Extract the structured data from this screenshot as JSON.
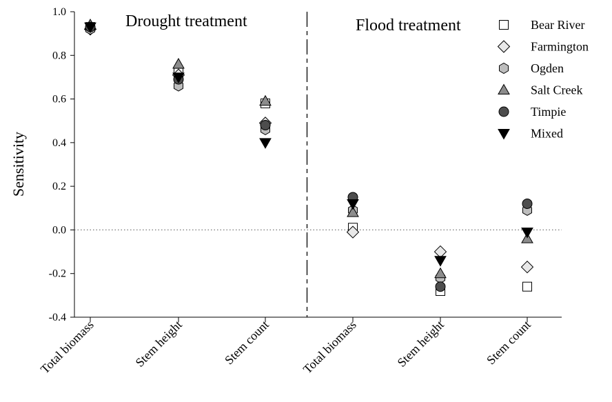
{
  "chart_data": {
    "type": "scatter",
    "title": "",
    "xlabel": "",
    "ylabel": "Sensitivity",
    "ylim": [
      -0.4,
      1.0
    ],
    "yticks": [
      "1.0",
      "0.8",
      "0.6",
      "0.4",
      "0.2",
      "0.0",
      "-0.2",
      "-0.4"
    ],
    "categories": [
      "Total biomass",
      "Stem height",
      "Stem count",
      "Total biomass",
      "Stem height",
      "Stem count"
    ],
    "panels": [
      {
        "label": "Drought treatment",
        "category_range": [
          0,
          2
        ]
      },
      {
        "label": "Flood treatment",
        "category_range": [
          3,
          5
        ]
      }
    ],
    "reference_line": {
      "y": 0.0,
      "style": "dotted"
    },
    "divider": {
      "between_categories": [
        2,
        3
      ],
      "style": "dashed"
    },
    "legend": {
      "placement": "top-right"
    },
    "series": [
      {
        "name": "Bear River",
        "marker": "square",
        "fill": "#ffffff",
        "values": [
          0.93,
          0.72,
          0.58,
          0.01,
          -0.28,
          -0.26
        ]
      },
      {
        "name": "Farmington",
        "marker": "diamond",
        "fill": "#e8e8e8",
        "values": [
          0.92,
          0.71,
          0.49,
          -0.01,
          -0.1,
          -0.17
        ]
      },
      {
        "name": "Ogden",
        "marker": "hexagon",
        "fill": "#bdbdbd",
        "values": [
          0.92,
          0.66,
          0.46,
          0.09,
          -0.22,
          0.09
        ]
      },
      {
        "name": "Salt Creek",
        "marker": "triangle-up",
        "fill": "#8c8c8c",
        "values": [
          0.94,
          0.76,
          0.59,
          0.08,
          -0.2,
          -0.04
        ]
      },
      {
        "name": "Timpie",
        "marker": "circle",
        "fill": "#4d4d4d",
        "values": [
          0.93,
          0.69,
          0.48,
          0.15,
          -0.26,
          0.12
        ]
      },
      {
        "name": "Mixed",
        "marker": "triangle-down",
        "fill": "#000000",
        "values": [
          0.93,
          0.7,
          0.4,
          0.12,
          -0.14,
          -0.01
        ]
      }
    ]
  }
}
